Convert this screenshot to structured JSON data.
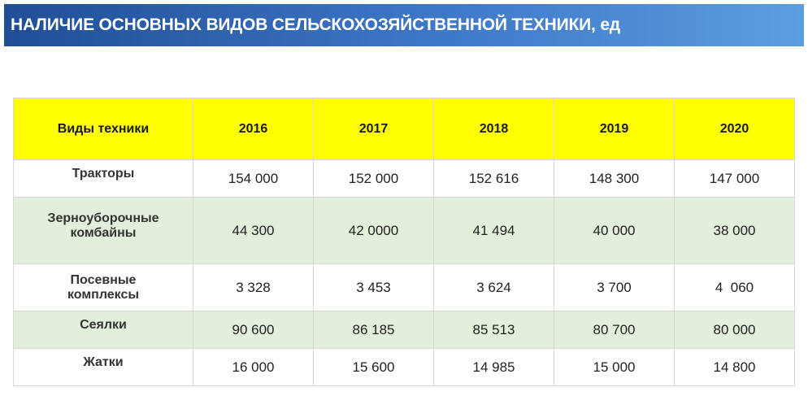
{
  "title": "НАЛИЧИЕ ОСНОВНЫХ ВИДОВ СЕЛЬСКОХОЗЯЙСТВЕННОЙ ТЕХНИКИ, ед",
  "table": {
    "headers": [
      "Виды техники",
      "2016",
      "2017",
      "2018",
      "2019",
      "2020"
    ],
    "rows": [
      {
        "label": "Тракторы",
        "values": [
          "154 000",
          "152 000",
          "152 616",
          "148 300",
          "147 000"
        ]
      },
      {
        "label_lines": [
          "Зерноуборочные",
          "комбайны"
        ],
        "values": [
          "44 300",
          "42 0000",
          "41 494",
          "40 000",
          "38 000"
        ]
      },
      {
        "label_lines": [
          "Посевные",
          "комплексы"
        ],
        "values": [
          "3 328",
          "3 453",
          "3 624",
          "3 700",
          "4  060"
        ]
      },
      {
        "label": "Сеялки",
        "values": [
          "90 600",
          "86 185",
          "85 513",
          "80 700",
          "80 000"
        ]
      },
      {
        "label": "Жатки",
        "values": [
          "16 000",
          "15 600",
          "14 985",
          "15 000",
          "14 800"
        ]
      }
    ]
  }
}
